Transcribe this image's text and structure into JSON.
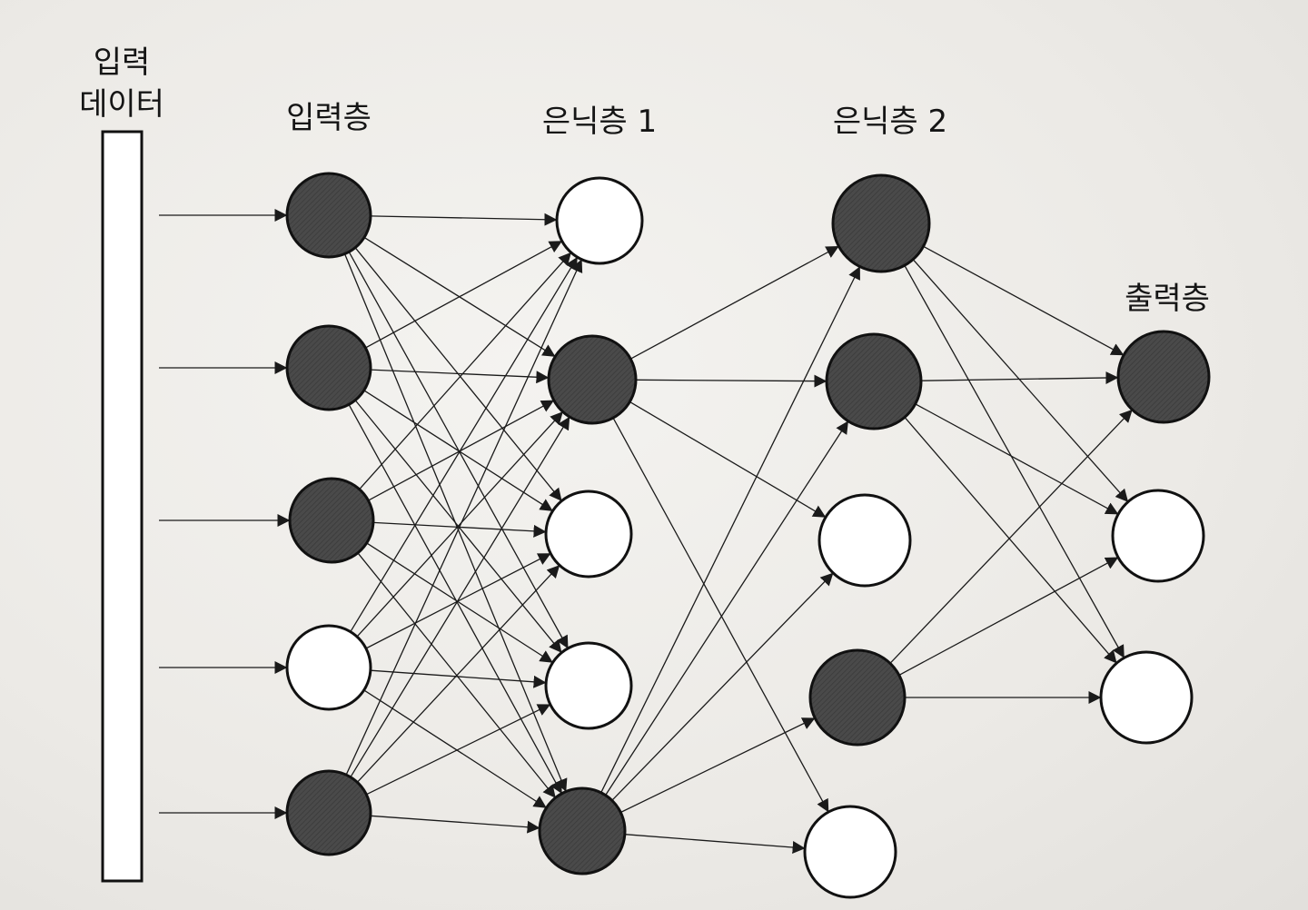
{
  "labels": {
    "input_data": [
      "입력",
      "데이터"
    ],
    "input_layer": "입력층",
    "hidden_layer_1": "은닉층 1",
    "hidden_layer_2": "은닉층 2",
    "output_layer": "출력층"
  },
  "colors": {
    "active_fill": "#4a4a4a",
    "inactive_fill": "#ffffff",
    "line": "#1a1a1a"
  },
  "layers": [
    {
      "id": "input",
      "nodes": [
        true,
        true,
        true,
        false,
        true
      ]
    },
    {
      "id": "hidden1",
      "nodes": [
        false,
        true,
        false,
        false,
        true
      ]
    },
    {
      "id": "hidden2",
      "nodes": [
        true,
        true,
        false,
        true,
        false
      ]
    },
    {
      "id": "output",
      "nodes": [
        true,
        false,
        false
      ]
    }
  ],
  "connections": {
    "input_to_hidden1": "full",
    "hidden1_to_hidden2": [
      [
        1,
        0
      ],
      [
        1,
        1
      ],
      [
        1,
        2
      ],
      [
        1,
        4
      ],
      [
        4,
        0
      ],
      [
        4,
        1
      ],
      [
        4,
        2
      ],
      [
        4,
        3
      ],
      [
        4,
        4
      ]
    ],
    "hidden2_to_output": [
      [
        0,
        0
      ],
      [
        0,
        1
      ],
      [
        0,
        2
      ],
      [
        1,
        0
      ],
      [
        1,
        1
      ],
      [
        1,
        2
      ],
      [
        3,
        0
      ],
      [
        3,
        1
      ],
      [
        3,
        2
      ]
    ]
  }
}
